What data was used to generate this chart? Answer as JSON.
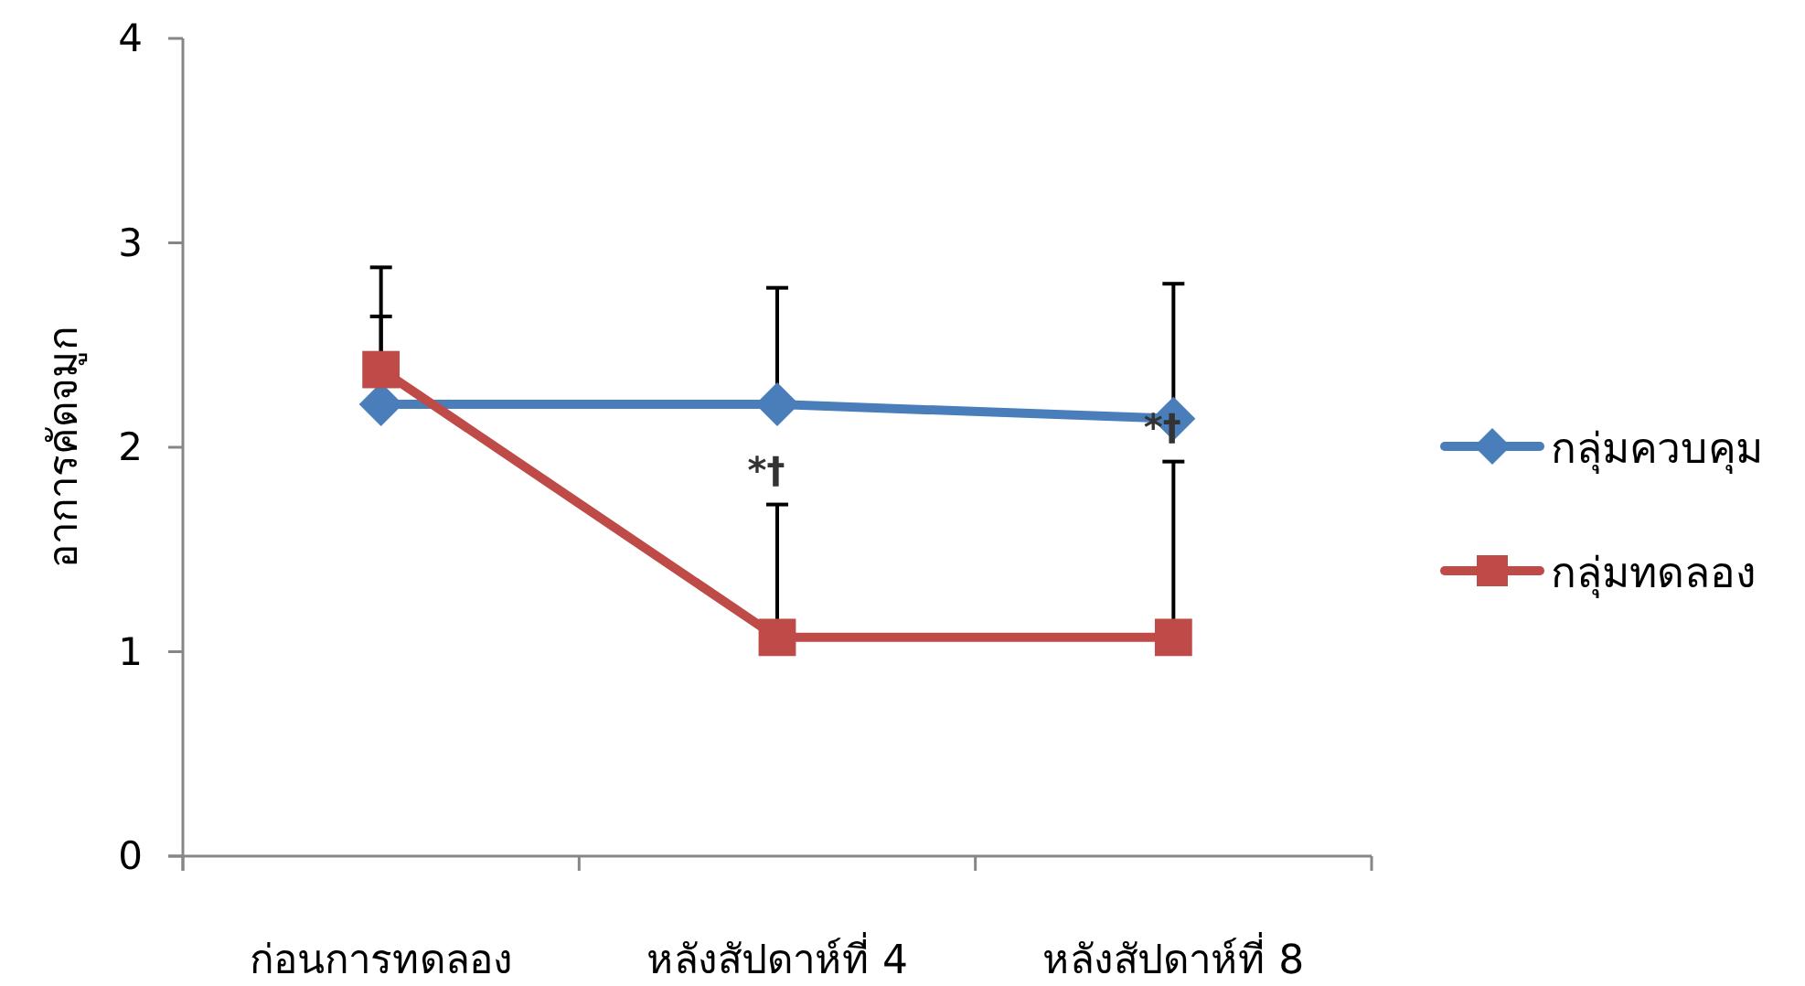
{
  "chart_data": {
    "type": "line",
    "ylabel": "อาการคัดจมูก",
    "categories": [
      "ก่อนการทดลอง",
      "หลังสัปดาห์ที่ 4",
      "หลังสัปดาห์ที่ 8"
    ],
    "series": [
      {
        "name": "กลุ่มควบคุม",
        "color": "#4a7ebb",
        "marker": "diamond",
        "values": [
          2.21,
          2.21,
          2.14
        ],
        "errors": [
          [
            2.21,
            2.64
          ],
          [
            2.21,
            2.78
          ],
          [
            2.14,
            2.8
          ]
        ]
      },
      {
        "name": "กลุ่มทดลอง",
        "color": "#be4b48",
        "marker": "square",
        "values": [
          2.38,
          1.07,
          1.07
        ],
        "errors": [
          [
            2.38,
            2.88
          ],
          [
            1.07,
            1.72
          ],
          [
            1.07,
            1.93
          ]
        ]
      }
    ],
    "ylim": [
      0,
      4
    ],
    "yticks": [
      0,
      1,
      2,
      3,
      4
    ],
    "grid": false,
    "legend": "right",
    "line_style": "solid",
    "annotations": [
      "*†",
      "*†"
    ]
  }
}
